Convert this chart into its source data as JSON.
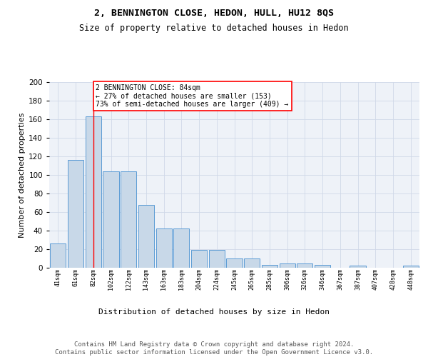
{
  "title": "2, BENNINGTON CLOSE, HEDON, HULL, HU12 8QS",
  "subtitle": "Size of property relative to detached houses in Hedon",
  "xlabel": "Distribution of detached houses by size in Hedon",
  "ylabel": "Number of detached properties",
  "bar_labels": [
    "41sqm",
    "61sqm",
    "82sqm",
    "102sqm",
    "122sqm",
    "143sqm",
    "163sqm",
    "183sqm",
    "204sqm",
    "224sqm",
    "245sqm",
    "265sqm",
    "285sqm",
    "306sqm",
    "326sqm",
    "346sqm",
    "367sqm",
    "387sqm",
    "407sqm",
    "428sqm",
    "448sqm"
  ],
  "bar_values": [
    26,
    116,
    163,
    104,
    104,
    68,
    42,
    42,
    19,
    19,
    10,
    10,
    3,
    5,
    5,
    3,
    0,
    2,
    0,
    0,
    2
  ],
  "bar_color": "#c8d8e8",
  "bar_edge_color": "#5b9bd5",
  "grid_color": "#d0d8e8",
  "background_color": "#eef2f8",
  "annotation_line1": "2 BENNINGTON CLOSE: 84sqm",
  "annotation_line2": "← 27% of detached houses are smaller (153)",
  "annotation_line3": "73% of semi-detached houses are larger (409) →",
  "annotation_box_color": "white",
  "annotation_box_edge_color": "red",
  "vline_x": 2,
  "vline_color": "red",
  "ylim": [
    0,
    200
  ],
  "yticks": [
    0,
    20,
    40,
    60,
    80,
    100,
    120,
    140,
    160,
    180,
    200
  ],
  "footer_text": "Contains HM Land Registry data © Crown copyright and database right 2024.\nContains public sector information licensed under the Open Government Licence v3.0.",
  "title_fontsize": 9.5,
  "subtitle_fontsize": 8.5,
  "annotation_fontsize": 7,
  "footer_fontsize": 6.5,
  "ylabel_fontsize": 8,
  "xlabel_fontsize": 8,
  "ytick_fontsize": 7.5,
  "xtick_fontsize": 6
}
